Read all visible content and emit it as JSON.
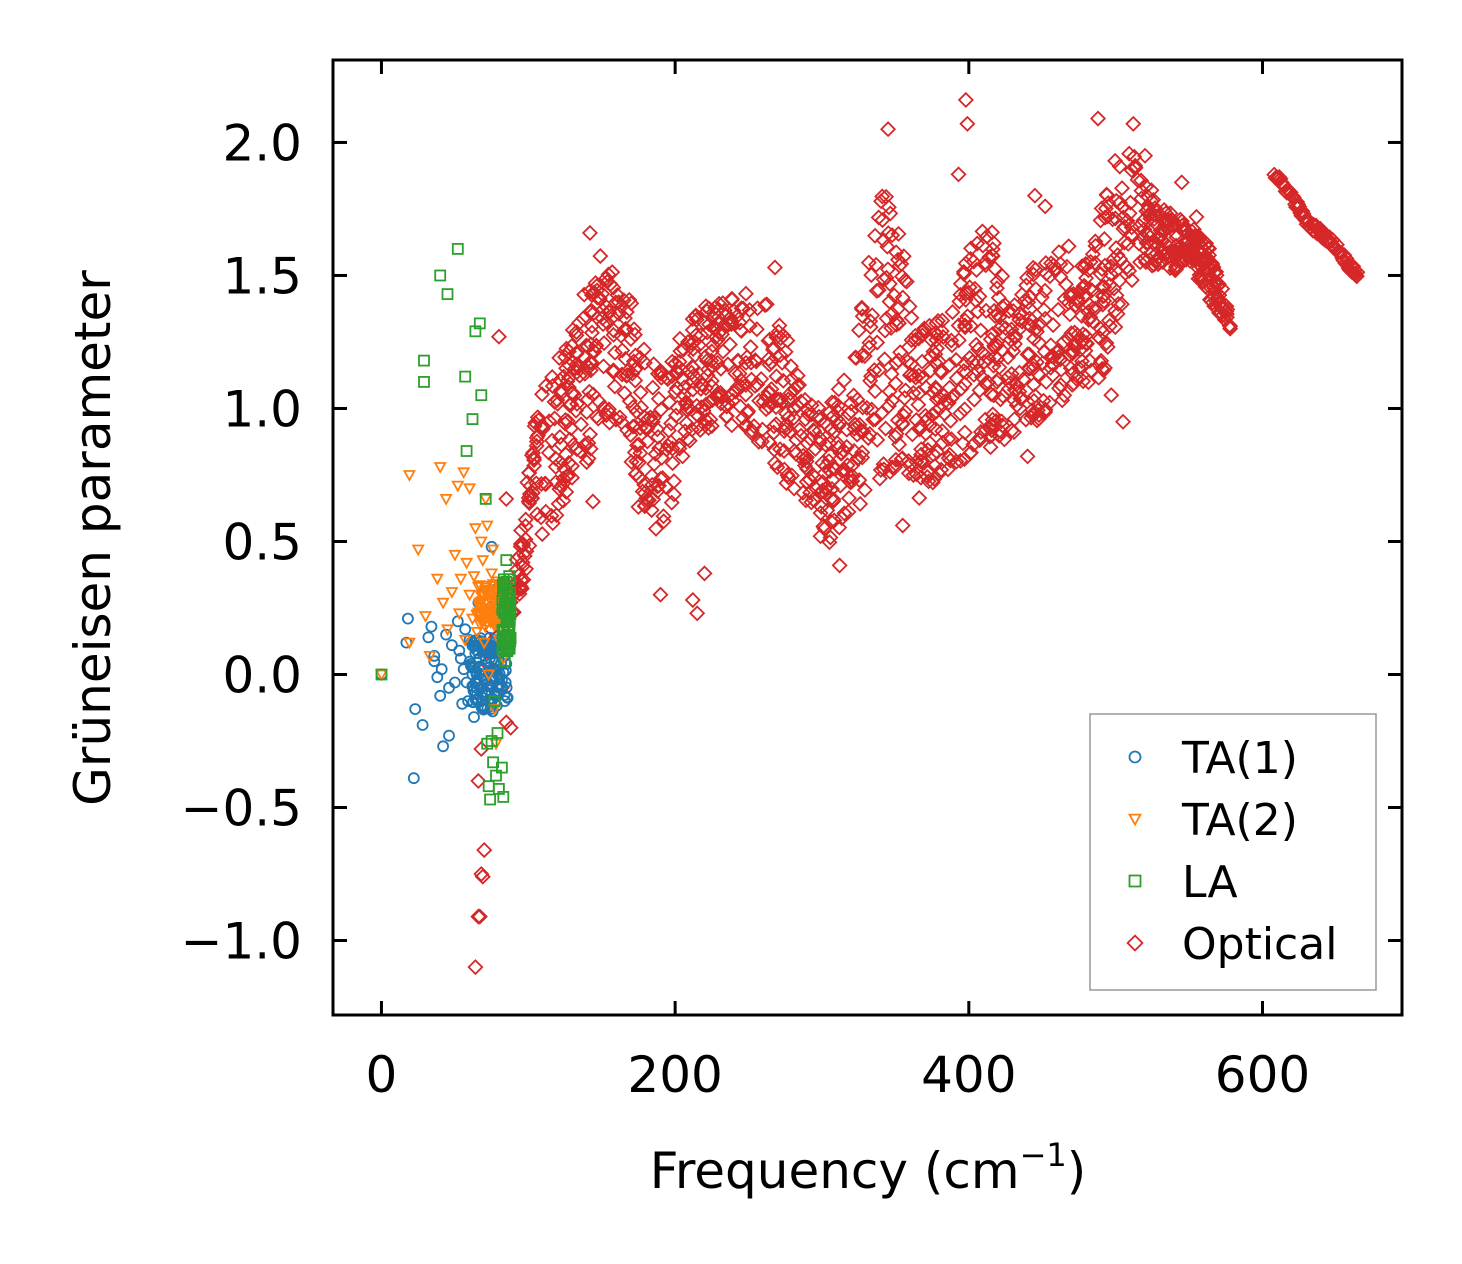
{
  "chart_data": {
    "type": "scatter",
    "title": "",
    "xlabel": "Frequency (cm",
    "xlabel_unit_superscript": "−1",
    "xlabel_close": ")",
    "ylabel": "Grüneisen parameter",
    "xlim": [
      -33,
      695
    ],
    "ylim": [
      -1.28,
      2.31
    ],
    "xticks": [
      0,
      200,
      400,
      600
    ],
    "xtick_labels": [
      "0",
      "200",
      "400",
      "600"
    ],
    "yticks": [
      -1.0,
      -0.5,
      0.0,
      0.5,
      1.0,
      1.5,
      2.0
    ],
    "ytick_labels": [
      "−1.0",
      "−0.5",
      "0.0",
      "0.5",
      "1.0",
      "1.5",
      "2.0"
    ],
    "grid": false,
    "legend_position": "lower-right",
    "series": [
      {
        "name": "TA(1)",
        "marker": "circle",
        "color": "#1f77b4",
        "points": [
          [
            0,
            0.0
          ],
          [
            18,
            0.21
          ],
          [
            17,
            0.12
          ],
          [
            22,
            -0.39
          ],
          [
            23,
            -0.13
          ],
          [
            28,
            -0.19
          ],
          [
            32,
            0.14
          ],
          [
            34,
            0.18
          ],
          [
            36,
            0.07
          ],
          [
            36,
            0.05
          ],
          [
            38,
            -0.01
          ],
          [
            40,
            -0.08
          ],
          [
            41,
            0.02
          ],
          [
            42,
            -0.27
          ],
          [
            44,
            0.15
          ],
          [
            46,
            -0.23
          ],
          [
            46,
            -0.05
          ],
          [
            48,
            0.11
          ],
          [
            50,
            -0.03
          ],
          [
            52,
            0.2
          ],
          [
            53,
            0.09
          ],
          [
            54,
            0.06
          ],
          [
            55,
            -0.11
          ],
          [
            56,
            0.02
          ],
          [
            57,
            0.17
          ],
          [
            58,
            -0.03
          ],
          [
            59,
            -0.1
          ],
          [
            60,
            0.13
          ],
          [
            61,
            0.04
          ],
          [
            62,
            0.0
          ],
          [
            63,
            -0.16
          ],
          [
            64,
            0.08
          ],
          [
            65,
            -0.05
          ],
          [
            66,
            0.27
          ],
          [
            67,
            0.03
          ],
          [
            68,
            -0.12
          ],
          [
            69,
            0.1
          ],
          [
            70,
            -0.02
          ],
          [
            71,
            0.06
          ],
          [
            72,
            -0.08
          ],
          [
            72,
            0.2
          ],
          [
            73,
            0.01
          ],
          [
            74,
            -0.04
          ],
          [
            75,
            0.48
          ],
          [
            75,
            0.12
          ],
          [
            76,
            -0.01
          ],
          [
            77,
            0.05
          ],
          [
            78,
            -0.07
          ],
          [
            78,
            0.32
          ],
          [
            79,
            0.0
          ],
          [
            80,
            0.03
          ],
          [
            80,
            -0.05
          ],
          [
            81,
            0.08
          ],
          [
            82,
            -0.02
          ],
          [
            83,
            0.01
          ],
          [
            84,
            -0.1
          ],
          [
            85,
            0.04
          ]
        ],
        "band": {
          "x": [
            60,
            86
          ],
          "y_center": 0.0,
          "spread": 0.14,
          "count": 110
        }
      },
      {
        "name": "TA(2)",
        "marker": "triangle-down",
        "color": "#ff7f0e",
        "points": [
          [
            0,
            0.0
          ],
          [
            19,
            0.12
          ],
          [
            19,
            0.75
          ],
          [
            25,
            0.47
          ],
          [
            30,
            0.22
          ],
          [
            33,
            0.07
          ],
          [
            38,
            0.36
          ],
          [
            40,
            0.78
          ],
          [
            42,
            0.27
          ],
          [
            44,
            0.66
          ],
          [
            45,
            0.17
          ],
          [
            48,
            0.31
          ],
          [
            50,
            0.45
          ],
          [
            52,
            0.71
          ],
          [
            53,
            0.23
          ],
          [
            54,
            0.36
          ],
          [
            56,
            0.76
          ],
          [
            57,
            0.13
          ],
          [
            58,
            0.42
          ],
          [
            60,
            0.3
          ],
          [
            60,
            0.7
          ],
          [
            62,
            0.21
          ],
          [
            63,
            0.37
          ],
          [
            64,
            0.55
          ],
          [
            65,
            0.16
          ],
          [
            66,
            0.33
          ],
          [
            67,
            0.27
          ],
          [
            68,
            0.5
          ],
          [
            69,
            0.43
          ],
          [
            70,
            0.12
          ],
          [
            71,
            0.66
          ],
          [
            72,
            0.56
          ],
          [
            72,
            0.25
          ],
          [
            73,
            0.0
          ],
          [
            74,
            0.31
          ],
          [
            75,
            0.38
          ],
          [
            76,
            0.47
          ],
          [
            77,
            -0.13
          ],
          [
            78,
            0.22
          ],
          [
            78,
            -0.26
          ],
          [
            79,
            0.35
          ],
          [
            80,
            0.13
          ],
          [
            80,
            0.28
          ],
          [
            81,
            0.18
          ],
          [
            82,
            0.25
          ],
          [
            83,
            0.06
          ],
          [
            84,
            0.3
          ],
          [
            85,
            0.2
          ]
        ],
        "band": {
          "x": [
            65,
            86
          ],
          "y_center": 0.26,
          "spread": 0.08,
          "count": 90
        }
      },
      {
        "name": "LA",
        "marker": "square",
        "color": "#2ca02c",
        "points": [
          [
            0,
            0.0
          ],
          [
            29,
            1.18
          ],
          [
            29,
            1.1
          ],
          [
            40,
            1.5
          ],
          [
            45,
            1.43
          ],
          [
            52,
            1.6
          ],
          [
            57,
            1.12
          ],
          [
            58,
            0.84
          ],
          [
            62,
            0.96
          ],
          [
            64,
            1.29
          ],
          [
            67,
            1.32
          ],
          [
            68,
            1.05
          ],
          [
            71,
            0.66
          ],
          [
            72,
            -0.26
          ],
          [
            73,
            -0.42
          ],
          [
            74,
            -0.47
          ],
          [
            75,
            -0.25
          ],
          [
            76,
            -0.33
          ],
          [
            77,
            -0.1
          ],
          [
            78,
            -0.38
          ],
          [
            79,
            -0.22
          ],
          [
            80,
            -0.43
          ],
          [
            82,
            -0.35
          ],
          [
            83,
            -0.46
          ],
          [
            84,
            0.05
          ],
          [
            85,
            0.43
          ],
          [
            86,
            0.3
          ],
          [
            87,
            0.37
          ]
        ],
        "band": {
          "x": [
            82,
            88
          ],
          "y_center": 0.22,
          "spread": 0.14,
          "count": 60
        }
      },
      {
        "name": "Optical",
        "marker": "diamond",
        "color": "#d62728",
        "points": [
          [
            64,
            -1.1
          ],
          [
            66,
            -0.91
          ],
          [
            67,
            -0.91
          ],
          [
            68,
            -0.75
          ],
          [
            69,
            -0.76
          ],
          [
            70,
            -0.66
          ],
          [
            66,
            -0.4
          ],
          [
            68,
            -0.28
          ],
          [
            70,
            -0.12
          ],
          [
            72,
            0.04
          ],
          [
            75,
            0.17
          ],
          [
            76,
            0.26
          ],
          [
            78,
            0.14
          ],
          [
            80,
            1.27
          ],
          [
            82,
            -0.05
          ],
          [
            85,
            0.66
          ],
          [
            85,
            -0.18
          ],
          [
            88,
            -0.2
          ],
          [
            90,
            0.3
          ],
          [
            142,
            1.66
          ],
          [
            144,
            0.65
          ],
          [
            175,
            0.63
          ],
          [
            190,
            0.3
          ],
          [
            212,
            0.28
          ],
          [
            215,
            0.23
          ],
          [
            220,
            0.38
          ],
          [
            268,
            1.53
          ],
          [
            312,
            0.41
          ],
          [
            345,
            2.05
          ],
          [
            355,
            0.56
          ],
          [
            393,
            1.88
          ],
          [
            398,
            2.16
          ],
          [
            399,
            2.07
          ],
          [
            440,
            0.82
          ],
          [
            445,
            1.8
          ],
          [
            452,
            1.76
          ],
          [
            468,
            1.61
          ],
          [
            488,
            2.09
          ],
          [
            497,
            1.05
          ],
          [
            505,
            0.95
          ],
          [
            512,
            2.07
          ],
          [
            520,
            1.95
          ],
          [
            545,
            1.85
          ],
          [
            555,
            1.72
          ],
          [
            578,
            1.3
          ]
        ],
        "envelope": [
          [
            88,
            0.2,
            0.35
          ],
          [
            95,
            0.3,
            0.6
          ],
          [
            105,
            0.45,
            1.0
          ],
          [
            120,
            0.6,
            1.2
          ],
          [
            135,
            0.75,
            1.4
          ],
          [
            150,
            0.9,
            1.6
          ],
          [
            160,
            0.95,
            1.55
          ],
          [
            170,
            0.8,
            1.4
          ],
          [
            180,
            0.6,
            1.2
          ],
          [
            190,
            0.4,
            1.15
          ],
          [
            200,
            0.7,
            1.25
          ],
          [
            210,
            0.85,
            1.35
          ],
          [
            225,
            0.9,
            1.4
          ],
          [
            245,
            0.95,
            1.45
          ],
          [
            260,
            0.85,
            1.42
          ],
          [
            275,
            0.7,
            1.3
          ],
          [
            290,
            0.55,
            1.05
          ],
          [
            305,
            0.48,
            1.0
          ],
          [
            320,
            0.6,
            1.2
          ],
          [
            335,
            0.7,
            1.65
          ],
          [
            345,
            0.75,
            1.9
          ],
          [
            355,
            0.8,
            1.6
          ],
          [
            365,
            0.65,
            1.3
          ],
          [
            380,
            0.75,
            1.35
          ],
          [
            395,
            0.8,
            1.5
          ],
          [
            410,
            0.85,
            1.75
          ],
          [
            420,
            0.85,
            1.6
          ],
          [
            430,
            0.9,
            1.4
          ],
          [
            445,
            0.95,
            1.55
          ],
          [
            460,
            1.0,
            1.6
          ],
          [
            475,
            1.1,
            1.5
          ],
          [
            490,
            1.05,
            1.75
          ],
          [
            500,
            1.3,
            1.95
          ],
          [
            510,
            1.45,
            2.0
          ],
          [
            520,
            1.55,
            1.85
          ],
          [
            535,
            1.5,
            1.75
          ],
          [
            550,
            1.55,
            1.7
          ],
          [
            565,
            1.4,
            1.6
          ],
          [
            578,
            1.3,
            1.35
          ]
        ],
        "tail": [
          [
            608,
            1.88
          ],
          [
            620,
            1.8
          ],
          [
            630,
            1.7
          ],
          [
            640,
            1.66
          ],
          [
            650,
            1.61
          ],
          [
            660,
            1.53
          ],
          [
            665,
            1.5
          ]
        ],
        "count": 1500
      }
    ]
  }
}
